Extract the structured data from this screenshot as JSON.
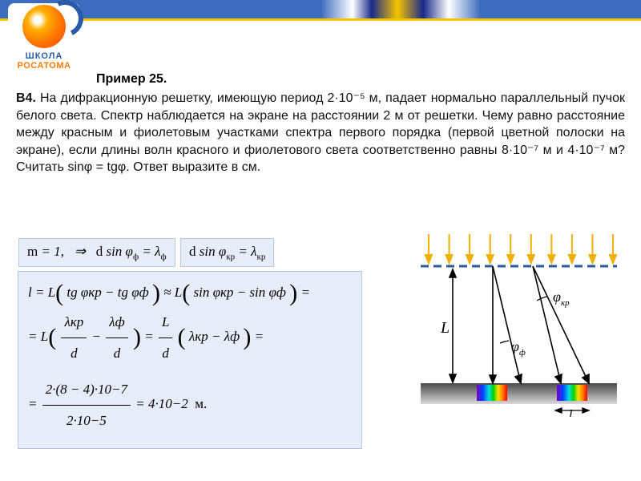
{
  "logo": {
    "line1": "ШКОЛА",
    "line2": "РОСАТОМА"
  },
  "example": {
    "title": "Пример 25."
  },
  "problem": {
    "label": "В4.",
    "text": "На дифракционную решетку, имеющую период 2·10⁻⁵ м, падает нормально параллельный пучок белого света. Спектр наблюдается на экране на расстоянии 2 м от решетки. Чему равно расстояние между красным и фиолетовым участками спектра первого порядка (первой цветной полоски на экране), если длины волн красного и фиолетового света соответственно равны 8·10⁻⁷ м и 4·10⁻⁷ м? Считать sinφ = tgφ. Ответ выразите в см."
  },
  "formulas": {
    "order": "m = 1,   ⇒",
    "eq_violet": "d sin φ_ф = λ_ф",
    "eq_red": "d sin φ_кр = λ_кр",
    "deriv1": "l = L( tg φ_кр − tg φ_ф ) ≈ L( sin φ_кр − sin φ_ф ) =",
    "lkr": "λ_кр",
    "lph": "λ_ф",
    "d": "d",
    "L": "L",
    "eq2_tail": "( λ_кр − λ_ф ) =",
    "calc_num": "2·(8 − 4)·10⁻⁷",
    "calc_den": "2·10⁻⁵",
    "result": "= 4·10⁻²  м."
  },
  "diagram": {
    "L_label": "L",
    "l_label": "l",
    "phi_red": "φ_кр",
    "phi_violet": "φ_ф",
    "arrow_color": "#f0b000",
    "grating_color": "#2a5aa8",
    "screen_gradient": [
      "#4a4a4a",
      "#d9d9d9"
    ],
    "n_arrows": 10
  },
  "colors": {
    "formula_bg": "#e6ecf8",
    "formula_border": "#b9c6e2"
  }
}
